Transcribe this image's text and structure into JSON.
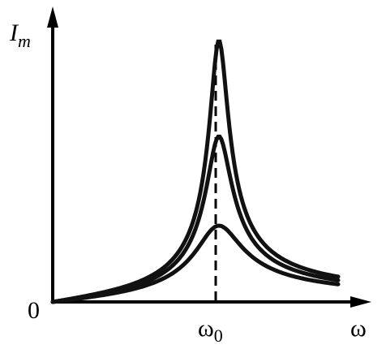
{
  "y_axis": {
    "symbol": "I",
    "subscript": "m"
  },
  "origin": "0",
  "x_axis": {
    "symbol": "ω"
  },
  "resonance_mark": {
    "symbol": "ω",
    "subscript": "0"
  }
}
